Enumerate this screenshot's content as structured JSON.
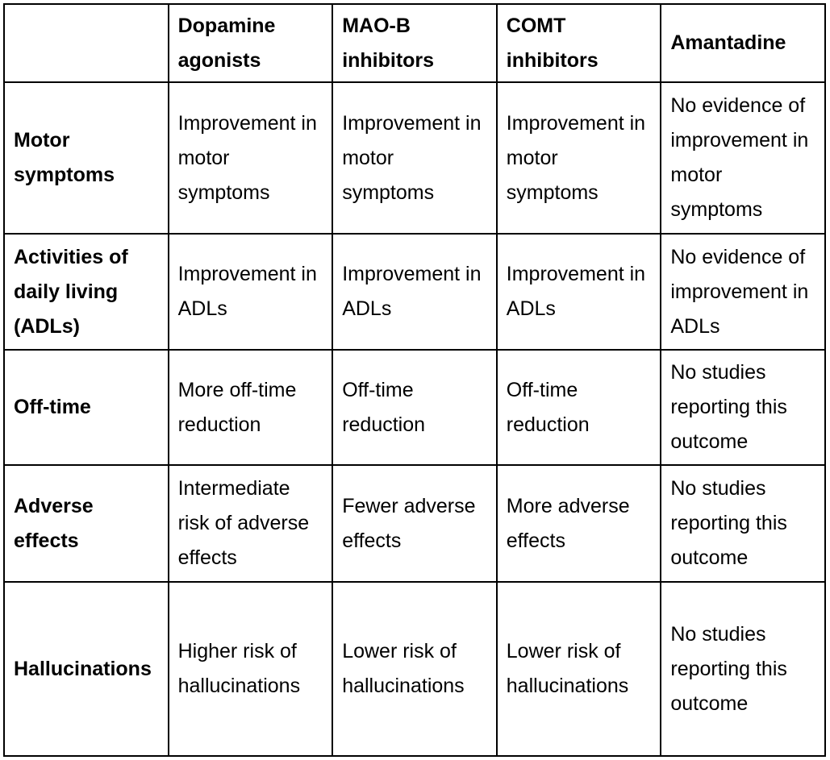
{
  "table": {
    "header": {
      "corner": "",
      "columns": [
        "Dopamine agonists",
        "MAO-B inhibitors",
        "COMT inhibitors",
        "Amantadine"
      ]
    },
    "rows": [
      {
        "label": "Motor symptoms",
        "cells": [
          "Improvement in motor symptoms",
          "Improvement in motor symptoms",
          "Improvement in motor symptoms",
          "No evidence of improvement in motor symptoms"
        ]
      },
      {
        "label": "Activities of daily living (ADLs)",
        "cells": [
          "Improvement in ADLs",
          "Improvement in ADLs",
          "Improvement in ADLs",
          "No evidence of improvement in ADLs"
        ]
      },
      {
        "label": "Off-time",
        "cells": [
          "More off-time reduction",
          "Off-time reduction",
          "Off-time reduction",
          "No studies reporting this outcome"
        ]
      },
      {
        "label": "Adverse effects",
        "cells": [
          "Intermediate risk of adverse effects",
          "Fewer adverse effects",
          "More adverse effects",
          "No studies reporting this outcome"
        ]
      },
      {
        "label": "Hallucinations",
        "cells": [
          "Higher risk of hallucinations",
          "Lower risk of hallucinations",
          "Lower risk of hallucinations",
          "No studies reporting this outcome"
        ]
      }
    ]
  },
  "colors": {
    "border": "#000000",
    "text": "#000000",
    "background": "#ffffff"
  }
}
